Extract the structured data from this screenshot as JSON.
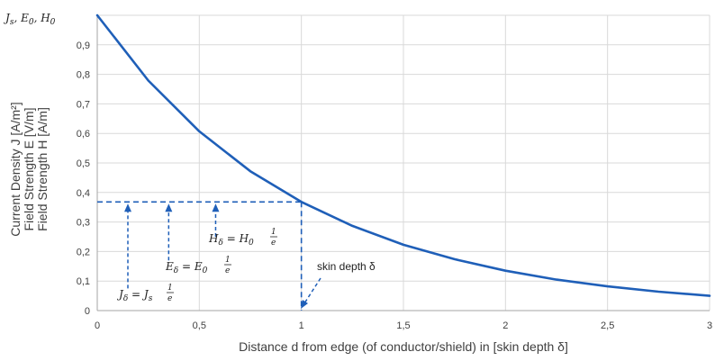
{
  "chart_data": {
    "type": "line",
    "title": "",
    "xlabel": "Distance d from edge (of conductor/shield) in [skin depth δ]",
    "ylabel_lines": [
      "Current Density J [A/m²]",
      "Field Strength E [V/m]",
      "Field Strength H [A/m]"
    ],
    "xlim": [
      0,
      3
    ],
    "ylim": [
      0,
      1
    ],
    "x_ticks": [
      0,
      0.5,
      1,
      1.5,
      2,
      2.5,
      3
    ],
    "x_tick_labels": [
      "0",
      "0,5",
      "1",
      "1,5",
      "2",
      "2,5",
      "3"
    ],
    "y_ticks": [
      0,
      0.1,
      0.2,
      0.3,
      0.4,
      0.5,
      0.6,
      0.7,
      0.8,
      0.9,
      1
    ],
    "y_tick_labels": [
      "0",
      "0,1",
      "0,2",
      "0,3",
      "0,4",
      "0,5",
      "0,6",
      "0,7",
      "0,8",
      "0,9",
      ""
    ],
    "y_top_label": "J_s, E_0, H_0",
    "grid": true,
    "series": [
      {
        "x": [
          0,
          0.25,
          0.5,
          0.75,
          1,
          1.25,
          1.5,
          1.75,
          2,
          2.25,
          2.5,
          2.75,
          3
        ],
        "values": [
          1,
          0.779,
          0.607,
          0.472,
          0.368,
          0.287,
          0.223,
          0.174,
          0.135,
          0.105,
          0.082,
          0.064,
          0.05
        ],
        "color": "#1f5fb8"
      }
    ],
    "reference_level": 0.368,
    "reference_x": 1,
    "arrow_x": [
      0.15,
      0.35,
      0.58
    ],
    "annotations": [
      {
        "label": "H_δ = H_0 · 1/e",
        "x": 0.58
      },
      {
        "label": "E_δ = E_0 · 1/e",
        "x": 0.35
      },
      {
        "label": "J_δ = J_s · 1/e",
        "x": 0.15
      },
      {
        "label": "skin depth δ",
        "x": 1
      }
    ],
    "colors": {
      "line": "#1f5fb8",
      "grid": "#d9d9d9",
      "axis": "#a6a6a6",
      "text": "#404040"
    }
  }
}
